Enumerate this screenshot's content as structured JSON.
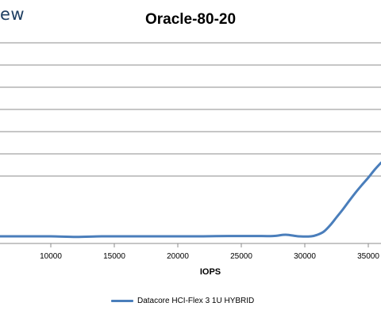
{
  "watermark_text": "ew",
  "chart_data": {
    "type": "line",
    "title": "Oracle-80-20",
    "xlabel": "IOPS",
    "ylabel": "",
    "x_ticks": [
      10000,
      15000,
      20000,
      25000,
      30000,
      35000
    ],
    "x_tick_labels": [
      "10000",
      "15000",
      "20000",
      "25000",
      "30000",
      "35000"
    ],
    "xlim": [
      6000,
      36000
    ],
    "y_gridlines": 7,
    "grid": true,
    "legend_position": "bottom",
    "series": [
      {
        "name": "Datacore HCI-Flex 3 1U HYBRID",
        "color": "#4a7ebb",
        "x": [
          6000,
          8000,
          10000,
          12000,
          14000,
          16000,
          18000,
          20000,
          22000,
          24000,
          26000,
          27500,
          28500,
          29500,
          30500,
          31000,
          31500,
          32000,
          32500,
          33000,
          33500,
          34000,
          34500,
          35000,
          35500,
          36000
        ],
        "y_rel": [
          0.0,
          0.0,
          0.0,
          -0.02,
          0.0,
          0.0,
          0.0,
          0.0,
          0.0,
          0.01,
          0.01,
          0.01,
          0.05,
          0.0,
          0.0,
          0.05,
          0.15,
          0.35,
          0.6,
          0.85,
          1.12,
          1.38,
          1.62,
          1.85,
          2.1,
          2.32
        ]
      }
    ]
  }
}
